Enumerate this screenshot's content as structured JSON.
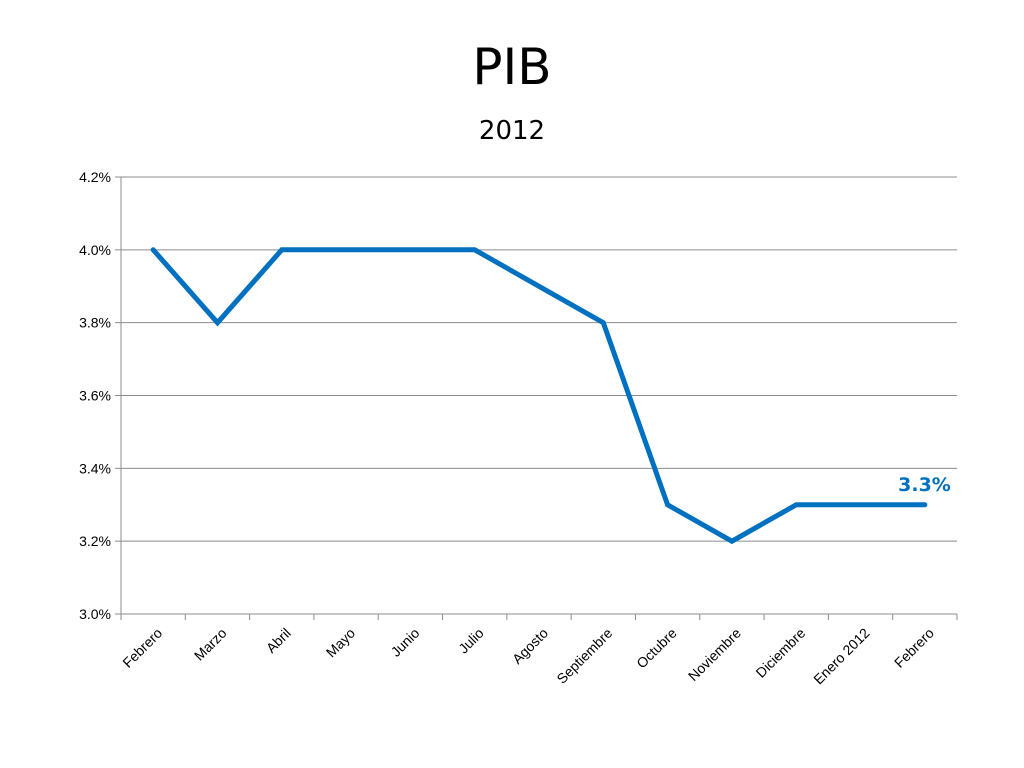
{
  "chart_data": {
    "type": "line",
    "title": "PIB",
    "subtitle": "2012",
    "categories": [
      "Febrero",
      "Marzo",
      "Abril",
      "Mayo",
      "Junio",
      "Julio",
      "Agosto",
      "Septiembre",
      "Octubre",
      "Noviembre",
      "Diciembre",
      "Enero 2012",
      "Febrero"
    ],
    "series": [
      {
        "values": [
          4.0,
          3.8,
          4.0,
          4.0,
          4.0,
          4.0,
          3.9,
          3.8,
          3.3,
          3.2,
          3.3,
          3.3,
          3.3
        ],
        "color": "#0070C0"
      }
    ],
    "ylim": [
      3.0,
      4.2
    ],
    "yticks": [
      3.0,
      3.2,
      3.4,
      3.6,
      3.8,
      4.0,
      4.2
    ],
    "ytick_labels": [
      "3.0%",
      "3.2%",
      "3.4%",
      "3.6%",
      "3.8%",
      "4.0%",
      "4.2%"
    ],
    "grid": true,
    "annotations": [
      {
        "category_index": 12,
        "text": "3.3%",
        "color": "#0070C0"
      }
    ]
  }
}
